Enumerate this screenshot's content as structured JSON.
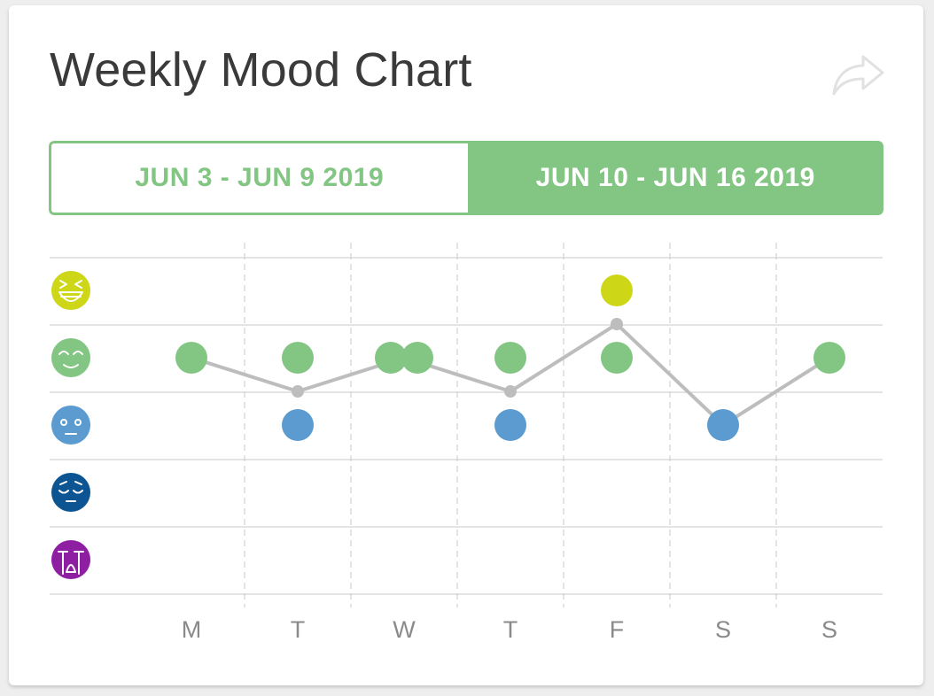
{
  "card": {
    "title": "Weekly Mood Chart",
    "share_icon": "share-arrow-icon"
  },
  "tabs": [
    {
      "label": "JUN 3 - JUN 9 2019",
      "active": false
    },
    {
      "label": "JUN 10 - JUN 16 2019",
      "active": true
    }
  ],
  "colors": {
    "accent": "#83c583",
    "line": "#bdbdbd",
    "grid": "#c8c8c8"
  },
  "chart_data": {
    "type": "scatter",
    "x_categories": [
      "M",
      "T",
      "W",
      "T",
      "F",
      "S",
      "S"
    ],
    "y_levels": [
      {
        "level": 5,
        "icon": "laughing-face-icon",
        "color": "#cdd617"
      },
      {
        "level": 4,
        "icon": "content-face-icon",
        "color": "#83c583"
      },
      {
        "level": 3,
        "icon": "neutral-face-icon",
        "color": "#5b9bd0"
      },
      {
        "level": 2,
        "icon": "sad-face-icon",
        "color": "#0d5592"
      },
      {
        "level": 1,
        "icon": "crying-face-icon",
        "color": "#8e1fa3"
      }
    ],
    "ylim": [
      1,
      5
    ],
    "grid": true,
    "mood_entries": [
      {
        "x": 0,
        "level": 4
      },
      {
        "x": 1,
        "level": 4
      },
      {
        "x": 1,
        "level": 3
      },
      {
        "x": 2,
        "level": 4
      },
      {
        "x": 2,
        "level": 4
      },
      {
        "x": 3,
        "level": 4
      },
      {
        "x": 3,
        "level": 3
      },
      {
        "x": 4,
        "level": 5
      },
      {
        "x": 4,
        "level": 4
      },
      {
        "x": 5,
        "level": 3
      },
      {
        "x": 6,
        "level": 4
      }
    ],
    "daily_average": [
      {
        "x": 0,
        "level": 4
      },
      {
        "x": 1,
        "level": 3.5
      },
      {
        "x": 2,
        "level": 4
      },
      {
        "x": 3,
        "level": 3.5
      },
      {
        "x": 4,
        "level": 4.5
      },
      {
        "x": 5,
        "level": 3
      },
      {
        "x": 6,
        "level": 4
      }
    ]
  }
}
